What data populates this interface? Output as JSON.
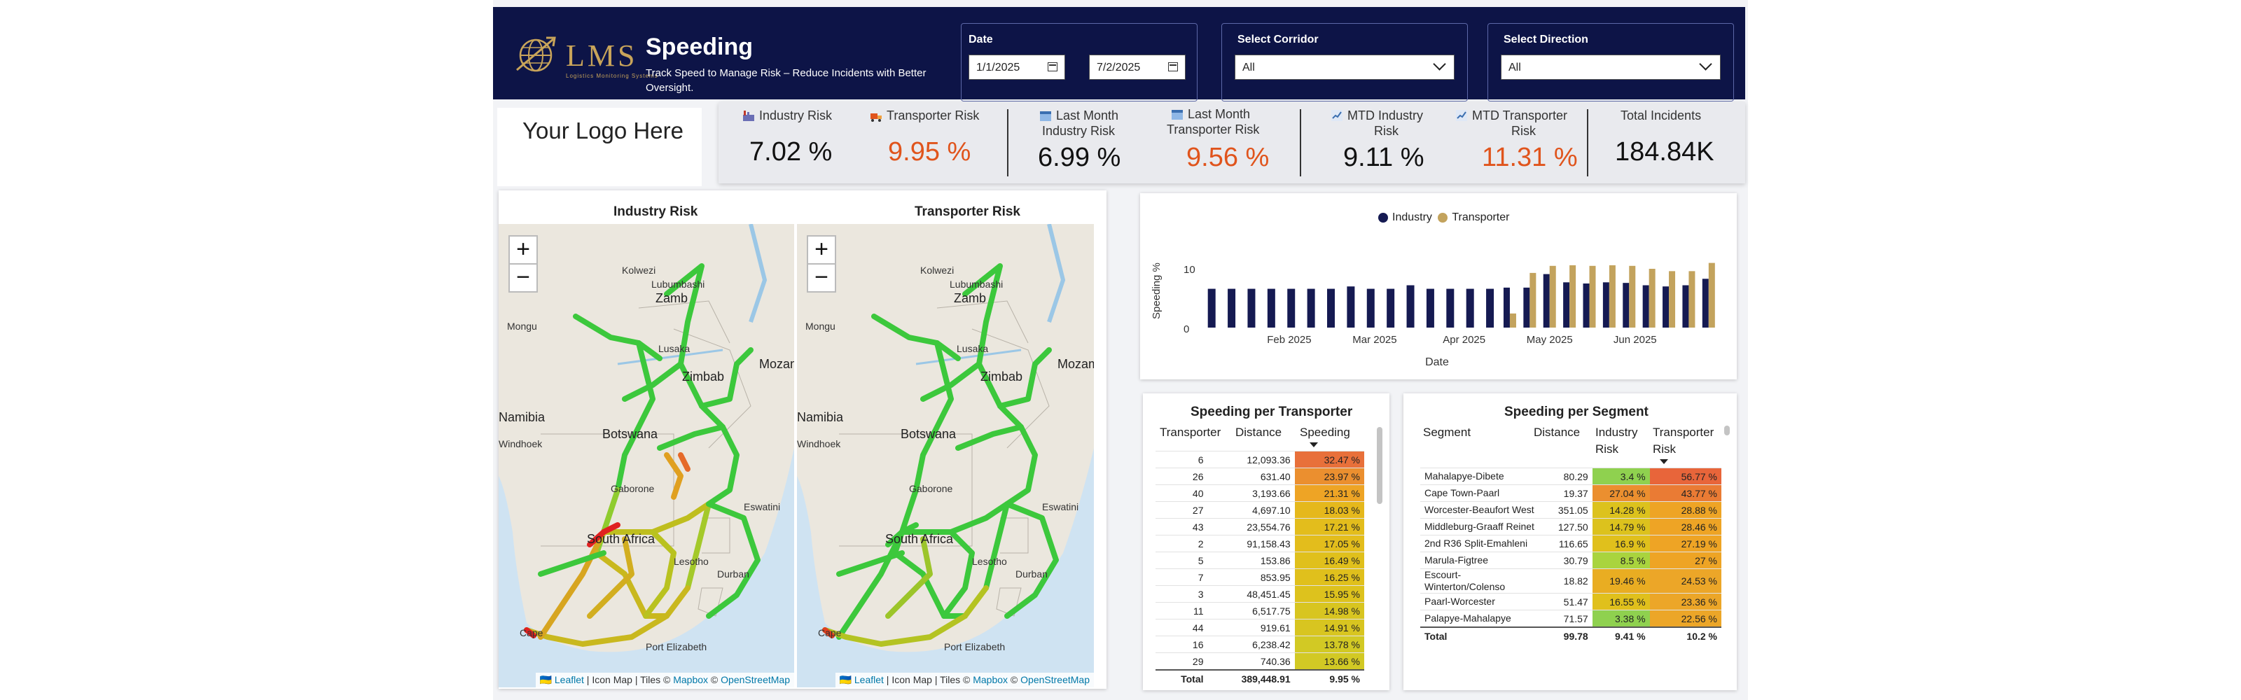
{
  "header": {
    "logo_text": "LMS",
    "logo_tagline": "Logistics Monitoring Systems",
    "title": "Speeding",
    "subtitle": "Track Speed to Manage Risk – Reduce Incidents with Better Oversight.",
    "date_label": "Date",
    "date_from": "1/1/2025",
    "date_to": "7/2/2025",
    "corridor_label": "Select Corridor",
    "corridor_value": "All",
    "direction_label": "Select Direction",
    "direction_value": "All"
  },
  "logo_placeholder": "Your Logo Here",
  "kpis": {
    "industry_risk_label": "Industry Risk",
    "industry_risk_value": "7.02 %",
    "transporter_risk_label": "Transporter Risk",
    "transporter_risk_value": "9.95 %",
    "last_month_industry_label_1": "Last Month",
    "last_month_industry_label_2": "Industry Risk",
    "last_month_industry_value": "6.99 %",
    "last_month_transporter_label_1": "Last Month",
    "last_month_transporter_label_2": "Transporter Risk",
    "last_month_transporter_value": "9.56 %",
    "mtd_industry_label_1": "MTD Industry",
    "mtd_industry_label_2": "Risk",
    "mtd_industry_value": "9.11 %",
    "mtd_transporter_label_1": "MTD Transporter",
    "mtd_transporter_label_2": "Risk",
    "mtd_transporter_value": "11.31 %",
    "total_incidents_label": "Total Incidents",
    "total_incidents_value": "184.84K",
    "colors": {
      "neutral": "#111111",
      "alert": "#e0541c"
    }
  },
  "maps": {
    "industry_title": "Industry Risk",
    "transporter_title": "Transporter Risk",
    "zoom_in": "+",
    "zoom_out": "−",
    "attribution_flag": "🇺🇦",
    "attribution_leaflet": "Leaflet",
    "attribution_rest": " | Icon Map | Tiles © ",
    "attribution_mapbox": "Mapbox",
    "attribution_sep": " © ",
    "attribution_osm": "OpenStreetMap",
    "labels": {
      "kolwezi": "Kolwezi",
      "lubumbashi": "Lubumbashi",
      "zambia": "Zamb",
      "mongu": "Mongu",
      "lusaka": "Lusaka",
      "zimbabwe": "Zimbab",
      "mozambique": "Mozam",
      "namibia": "Namibia",
      "botswana": "Botswana",
      "windhoek": "Windhoek",
      "gaborone": "Gaborone",
      "eswatini": "Eswatini",
      "south_africa": "South Africa",
      "lesotho": "Lesotho",
      "durban": "Durban",
      "cape": "Cape",
      "port_elizabeth": "Port Elizabeth"
    }
  },
  "chart": {
    "legend_industry": "Industry",
    "legend_transporter": "Transporter",
    "ylabel": "Speeding %",
    "xlabel": "Date",
    "ytick_top": "10",
    "ytick_zero": "0",
    "month_labels": [
      "Feb 2025",
      "Mar 2025",
      "Apr 2025",
      "May 2025",
      "Jun 2025"
    ],
    "colors": {
      "industry": "#151a52",
      "transporter": "#c3a35d"
    }
  },
  "chart_data": {
    "type": "bar",
    "title": "",
    "xlabel": "Date",
    "ylabel": "Speeding %",
    "ylim": [
      0,
      12
    ],
    "yticks": [
      0,
      10
    ],
    "x_tick_labels": [
      "Feb 2025",
      "Mar 2025",
      "Apr 2025",
      "May 2025",
      "Jun 2025"
    ],
    "legend": "top",
    "weeks": 26,
    "series": [
      {
        "name": "Industry",
        "values": [
          6.6,
          6.6,
          6.6,
          6.6,
          6.6,
          6.6,
          6.6,
          7.0,
          6.6,
          6.6,
          7.2,
          6.6,
          6.6,
          6.6,
          6.6,
          6.8,
          6.8,
          9.1,
          7.7,
          7.5,
          7.7,
          7.6,
          7.2,
          7.0,
          7.2,
          8.3
        ]
      },
      {
        "name": "Transporter",
        "values": [
          null,
          null,
          null,
          null,
          null,
          null,
          null,
          null,
          null,
          null,
          null,
          null,
          null,
          null,
          null,
          2.4,
          9.3,
          10.5,
          10.6,
          10.5,
          10.6,
          10.5,
          10.0,
          9.6,
          9.6,
          11.0
        ]
      }
    ]
  },
  "transporter_table": {
    "title": "Speeding per Transporter",
    "col_transporter": "Transporter",
    "col_distance": "Distance",
    "col_speeding": "Speeding",
    "rows": [
      {
        "id": "6",
        "distance": "12,093.36",
        "speeding": "32.47 %",
        "color": "#e8703a"
      },
      {
        "id": "26",
        "distance": "631.40",
        "speeding": "23.97 %",
        "color": "#eb8f2f"
      },
      {
        "id": "40",
        "distance": "3,193.66",
        "speeding": "21.31 %",
        "color": "#eea425"
      },
      {
        "id": "27",
        "distance": "4,697.10",
        "speeding": "18.03 %",
        "color": "#e5b81c"
      },
      {
        "id": "43",
        "distance": "23,554.76",
        "speeding": "17.21 %",
        "color": "#e3bd1c"
      },
      {
        "id": "2",
        "distance": "91,158.43",
        "speeding": "17.05 %",
        "color": "#e3bd1c"
      },
      {
        "id": "5",
        "distance": "153.86",
        "speeding": "16.49 %",
        "color": "#e0c01c"
      },
      {
        "id": "7",
        "distance": "853.95",
        "speeding": "16.25 %",
        "color": "#e0c01c"
      },
      {
        "id": "3",
        "distance": "48,451.45",
        "speeding": "15.95 %",
        "color": "#ddc21d"
      },
      {
        "id": "11",
        "distance": "6,517.75",
        "speeding": "14.98 %",
        "color": "#d8c520"
      },
      {
        "id": "44",
        "distance": "919.61",
        "speeding": "14.91 %",
        "color": "#d8c520"
      },
      {
        "id": "16",
        "distance": "6,238.42",
        "speeding": "13.78 %",
        "color": "#d2c924"
      },
      {
        "id": "29",
        "distance": "740.36",
        "speeding": "13.66 %",
        "color": "#d2c924"
      }
    ],
    "total_label": "Total",
    "total_distance": "389,448.91",
    "total_speeding": "9.95 %"
  },
  "segment_table": {
    "title": "Speeding per Segment",
    "col_segment": "Segment",
    "col_distance": "Distance",
    "col_industry_1": "Industry",
    "col_industry_2": "Risk",
    "col_transporter_1": "Transporter",
    "col_transporter_2": "Risk",
    "rows": [
      {
        "segment": "Mahalapye-Dibete",
        "distance": "80.29",
        "industry": "3.4 %",
        "transporter": "56.77 %",
        "ind_color": "#8fd14f",
        "tr_color": "#e8653a"
      },
      {
        "segment": "Cape Town-Paarl",
        "distance": "19.37",
        "industry": "27.04 %",
        "transporter": "43.77 %",
        "ind_color": "#eb8f2f",
        "tr_color": "#ea7b34"
      },
      {
        "segment": "Worcester-Beaufort West",
        "distance": "351.05",
        "industry": "14.28 %",
        "transporter": "28.88 %",
        "ind_color": "#dcc21d",
        "tr_color": "#eea425"
      },
      {
        "segment": "Middleburg-Graaff Reinet",
        "distance": "127.50",
        "industry": "14.79 %",
        "transporter": "28.46 %",
        "ind_color": "#dcc21d",
        "tr_color": "#eea425"
      },
      {
        "segment": "2nd R36 Split-Emahleni",
        "distance": "116.65",
        "industry": "16.9 %",
        "transporter": "27.19 %",
        "ind_color": "#e0c01c",
        "tr_color": "#eea425"
      },
      {
        "segment": "Marula-Figtree",
        "distance": "30.79",
        "industry": "8.5 %",
        "transporter": "27 %",
        "ind_color": "#a9d43e",
        "tr_color": "#eea425"
      },
      {
        "segment": "Escourt-Winterton/Colenso",
        "distance": "18.82",
        "industry": "19.46 %",
        "transporter": "24.53 %",
        "ind_color": "#e9ad22",
        "tr_color": "#eca628"
      },
      {
        "segment": "Paarl-Worcester",
        "distance": "51.47",
        "industry": "16.55 %",
        "transporter": "23.36 %",
        "ind_color": "#e0c01c",
        "tr_color": "#eca628"
      },
      {
        "segment": "Palapye-Mahalapye",
        "distance": "71.57",
        "industry": "3.38 %",
        "transporter": "22.56 %",
        "ind_color": "#8fd14f",
        "tr_color": "#eca628"
      }
    ],
    "total_label": "Total",
    "total_distance": "99.78",
    "total_industry": "9.41 %",
    "total_transporter": "10.2 %"
  }
}
